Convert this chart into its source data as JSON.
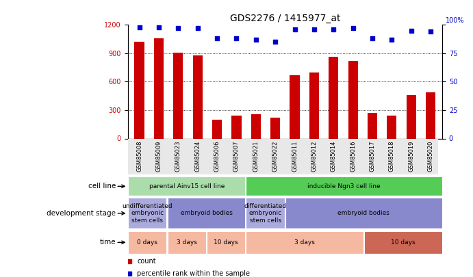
{
  "title": "GDS2276 / 1415977_at",
  "samples": [
    "GSM85008",
    "GSM85009",
    "GSM85023",
    "GSM85024",
    "GSM85006",
    "GSM85007",
    "GSM85021",
    "GSM85022",
    "GSM85011",
    "GSM85012",
    "GSM85014",
    "GSM85016",
    "GSM85017",
    "GSM85018",
    "GSM85019",
    "GSM85020"
  ],
  "counts": [
    1020,
    1060,
    910,
    880,
    200,
    240,
    260,
    220,
    670,
    700,
    860,
    820,
    270,
    240,
    460,
    490
  ],
  "percentiles": [
    98,
    98,
    97,
    97,
    88,
    88,
    87,
    85,
    96,
    96,
    96,
    97,
    88,
    87,
    95,
    94
  ],
  "ylim_left": [
    0,
    1200
  ],
  "ylim_right": [
    0,
    100
  ],
  "yticks_left": [
    0,
    300,
    600,
    900,
    1200
  ],
  "yticks_right": [
    0,
    25,
    50,
    75,
    100
  ],
  "bar_color": "#cc0000",
  "scatter_color": "#0000cc",
  "cell_line_row": {
    "label": "cell line",
    "groups": [
      {
        "text": "parental Ainv15 cell line",
        "start": 0,
        "end": 6,
        "color": "#aaddaa"
      },
      {
        "text": "inducible Ngn3 cell line",
        "start": 6,
        "end": 16,
        "color": "#55cc55"
      }
    ]
  },
  "dev_stage_row": {
    "label": "development stage",
    "groups": [
      {
        "text": "undifferentiated\nembryonic\nstem cells",
        "start": 0,
        "end": 2,
        "color": "#aaaadd"
      },
      {
        "text": "embryoid bodies",
        "start": 2,
        "end": 6,
        "color": "#8888cc"
      },
      {
        "text": "differentiated\nembryonic\nstem cells",
        "start": 6,
        "end": 8,
        "color": "#aaaadd"
      },
      {
        "text": "embryoid bodies",
        "start": 8,
        "end": 16,
        "color": "#8888cc"
      }
    ]
  },
  "time_row": {
    "label": "time",
    "groups": [
      {
        "text": "0 days",
        "start": 0,
        "end": 2,
        "color": "#f5b8a0"
      },
      {
        "text": "3 days",
        "start": 2,
        "end": 4,
        "color": "#f5b8a0"
      },
      {
        "text": "10 days",
        "start": 4,
        "end": 6,
        "color": "#f5b8a0"
      },
      {
        "text": "3 days",
        "start": 6,
        "end": 12,
        "color": "#f5b8a0"
      },
      {
        "text": "10 days",
        "start": 12,
        "end": 16,
        "color": "#cc6655"
      }
    ]
  },
  "legend": [
    {
      "color": "#cc0000",
      "label": "count"
    },
    {
      "color": "#0000cc",
      "label": "percentile rank within the sample"
    }
  ]
}
